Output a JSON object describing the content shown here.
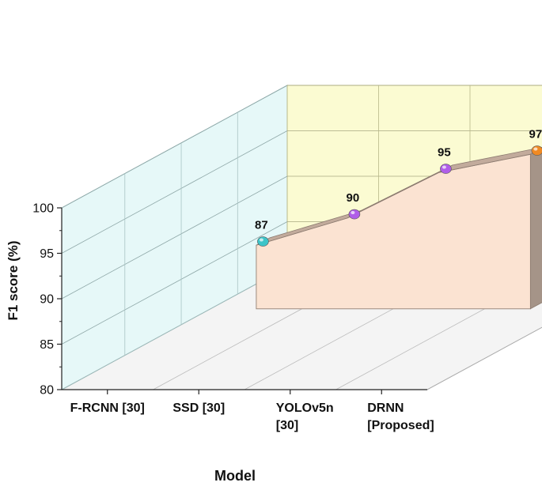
{
  "chart_data": {
    "type": "area",
    "categories": [
      "F-RCNN  [30]",
      "SSD  [30]",
      "YOLOv5n [30]",
      "DRNN [Proposed]"
    ],
    "category_lines": [
      [
        "F-RCNN  [30]"
      ],
      [
        "SSD  [30]"
      ],
      [
        "YOLOv5n",
        "[30]"
      ],
      [
        "DRNN",
        "[Proposed]"
      ]
    ],
    "values": [
      87,
      90,
      95,
      97
    ],
    "data_labels": [
      "87",
      "90",
      "95",
      "97"
    ],
    "point_colors": [
      "#3cc4c8",
      "#b05ee8",
      "#b05ee8",
      "#f08a24"
    ],
    "xlabel": "Model",
    "ylabel": "F1 score (%)",
    "ylim": [
      80,
      100
    ],
    "yticks": [
      80,
      85,
      90,
      95,
      100
    ],
    "ytick_labels": [
      "80",
      "85",
      "90",
      "95",
      "100"
    ],
    "grid": true,
    "colors": {
      "left_wall": "#e6f8f8",
      "back_wall": "#fbfbd2",
      "floor": "#f4f4f4",
      "area_front": "#fbe3d2",
      "area_top": "#c2ab9c",
      "area_side": "#a59488"
    }
  }
}
